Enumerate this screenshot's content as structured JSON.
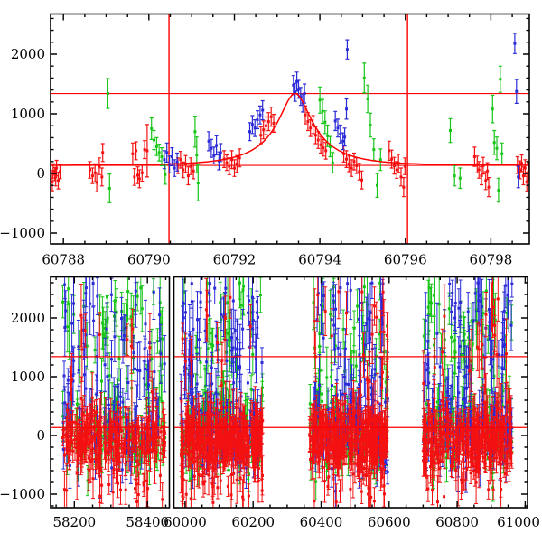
{
  "figure": {
    "background": "#ffffff",
    "axis_color": "#000000",
    "ref_line_color": "#ff0000",
    "model_color": "#ff0000",
    "series_colors": {
      "red": "#f41111",
      "green": "#17c517",
      "blue": "#2a2ad8"
    }
  },
  "chart_data": [
    {
      "id": "zoomed-light-curve",
      "type": "scatter",
      "x_range": [
        60787.7,
        60798.9
      ],
      "y_range": [
        -1182,
        2674
      ],
      "x_major_ticks": [
        60788,
        60790,
        60792,
        60794,
        60796,
        60798
      ],
      "x_tick_labels": [
        "60788",
        "60790",
        "60792",
        "60794",
        "60796",
        "60798"
      ],
      "x_minor_step": 0.5,
      "y_major_ticks": [
        -1000,
        0,
        1000,
        2000
      ],
      "y_tick_labels": [
        "−1000",
        "0",
        "1000",
        "2000"
      ],
      "y_minor_step": 200,
      "grid": false,
      "baseline_flux": 135,
      "peak_flux": 1340,
      "hlines": [
        135,
        1340
      ],
      "vlines": [
        60790.47,
        60796.05
      ],
      "model": {
        "shape": "paczynski",
        "t0": 60793.42,
        "tE": 1.4,
        "u0": 0.28,
        "baseline": 135,
        "peak": 1340
      },
      "series": [
        {
          "name": "red",
          "points": [
            [
              60787.74,
              -140,
              150
            ],
            [
              60787.76,
              40,
              120
            ],
            [
              60787.8,
              -10,
              110
            ],
            [
              60787.82,
              -60,
              150
            ],
            [
              60787.84,
              90,
              130
            ],
            [
              60787.88,
              -120,
              140
            ],
            [
              60787.92,
              30,
              120
            ],
            [
              60788.62,
              60,
              140
            ],
            [
              60788.68,
              -40,
              130
            ],
            [
              60788.74,
              10,
              150
            ],
            [
              60788.78,
              -150,
              160
            ],
            [
              60788.84,
              120,
              140
            ],
            [
              60788.9,
              -60,
              150
            ],
            [
              60788.92,
              350,
              150
            ],
            [
              60789.62,
              330,
              180
            ],
            [
              60789.66,
              -60,
              140
            ],
            [
              60789.7,
              380,
              150
            ],
            [
              60789.74,
              -30,
              140
            ],
            [
              60789.78,
              -90,
              150
            ],
            [
              60789.84,
              10,
              140
            ],
            [
              60789.9,
              400,
              150
            ],
            [
              60789.96,
              380,
              440
            ],
            [
              60790.68,
              130,
              130
            ],
            [
              60790.74,
              230,
              140
            ],
            [
              60790.8,
              60,
              130
            ],
            [
              60790.86,
              160,
              140
            ],
            [
              60790.92,
              -40,
              150
            ],
            [
              60790.98,
              120,
              140
            ],
            [
              60791.04,
              40,
              130
            ],
            [
              60791.76,
              240,
              140
            ],
            [
              60791.82,
              180,
              130
            ],
            [
              60791.88,
              120,
              140
            ],
            [
              60791.94,
              230,
              150
            ],
            [
              60792.0,
              90,
              140
            ],
            [
              60792.06,
              160,
              140
            ],
            [
              60792.12,
              260,
              150
            ],
            [
              60792.62,
              640,
              140
            ],
            [
              60792.68,
              730,
              150
            ],
            [
              60792.74,
              800,
              150
            ],
            [
              60792.8,
              870,
              150
            ],
            [
              60792.86,
              950,
              160
            ],
            [
              60792.92,
              840,
              150
            ],
            [
              60793.66,
              980,
              150
            ],
            [
              60793.72,
              870,
              150
            ],
            [
              60793.78,
              760,
              140
            ],
            [
              60793.84,
              820,
              150
            ],
            [
              60793.9,
              640,
              140
            ],
            [
              60793.96,
              560,
              140
            ],
            [
              60794.02,
              480,
              140
            ],
            [
              60794.08,
              430,
              140
            ],
            [
              60794.14,
              380,
              140
            ],
            [
              60794.56,
              330,
              140
            ],
            [
              60794.62,
              240,
              140
            ],
            [
              60794.68,
              160,
              130
            ],
            [
              60794.74,
              90,
              140
            ],
            [
              60794.8,
              200,
              140
            ],
            [
              60794.86,
              130,
              130
            ],
            [
              60794.92,
              30,
              140
            ],
            [
              60794.98,
              -110,
              150
            ],
            [
              60795.62,
              380,
              160
            ],
            [
              60795.68,
              240,
              150
            ],
            [
              60795.74,
              130,
              140
            ],
            [
              60795.8,
              60,
              140
            ],
            [
              60795.84,
              170,
              150
            ],
            [
              60795.9,
              -60,
              150
            ],
            [
              60795.96,
              -230,
              160
            ],
            [
              60795.99,
              120,
              140
            ],
            [
              60797.62,
              280,
              160
            ],
            [
              60797.68,
              150,
              140
            ],
            [
              60797.72,
              60,
              140
            ],
            [
              60797.78,
              -40,
              150
            ],
            [
              60797.82,
              130,
              140
            ],
            [
              60797.88,
              -120,
              150
            ],
            [
              60797.92,
              40,
              140
            ],
            [
              60797.95,
              -230,
              160
            ],
            [
              60798.62,
              140,
              140
            ],
            [
              60798.68,
              60,
              150
            ],
            [
              60798.72,
              170,
              140
            ],
            [
              60798.76,
              -40,
              150
            ],
            [
              60798.8,
              90,
              140
            ],
            [
              60798.84,
              -140,
              160
            ],
            [
              60798.88,
              30,
              150
            ]
          ]
        },
        {
          "name": "green",
          "points": [
            [
              60789.04,
              1340,
              250
            ],
            [
              60789.08,
              -250,
              240
            ],
            [
              60790.06,
              750,
              180
            ],
            [
              60790.12,
              560,
              160
            ],
            [
              60790.18,
              450,
              150
            ],
            [
              60790.24,
              350,
              140
            ],
            [
              60790.3,
              280,
              150
            ],
            [
              60790.38,
              -20,
              160
            ],
            [
              60791.08,
              700,
              260
            ],
            [
              60791.12,
              310,
              300
            ],
            [
              60791.15,
              -160,
              300
            ],
            [
              60794.0,
              1230,
              220
            ],
            [
              60794.06,
              1040,
              200
            ],
            [
              60794.12,
              860,
              190
            ],
            [
              60794.18,
              630,
              180
            ],
            [
              60794.24,
              450,
              170
            ],
            [
              60794.3,
              180,
              170
            ],
            [
              60795.04,
              1600,
              250
            ],
            [
              60795.12,
              1250,
              230
            ],
            [
              60795.18,
              810,
              200
            ],
            [
              60795.26,
              400,
              180
            ],
            [
              60795.34,
              -200,
              200
            ],
            [
              60795.42,
              230,
              180
            ],
            [
              60797.05,
              720,
              200
            ],
            [
              60797.15,
              -40,
              170
            ],
            [
              60797.28,
              -80,
              170
            ],
            [
              60798.04,
              1080,
              230
            ],
            [
              60798.08,
              520,
              200
            ],
            [
              60798.14,
              420,
              190
            ],
            [
              60798.18,
              -280,
              200
            ],
            [
              60798.22,
              1580,
              220
            ],
            [
              60798.26,
              330,
              180
            ]
          ]
        },
        {
          "name": "blue",
          "points": [
            [
              60790.36,
              230,
              150
            ],
            [
              60790.42,
              350,
              160
            ],
            [
              60790.48,
              150,
              140
            ],
            [
              60790.54,
              280,
              150
            ],
            [
              60790.6,
              90,
              140
            ],
            [
              60790.66,
              190,
              150
            ],
            [
              60791.4,
              540,
              160
            ],
            [
              60791.46,
              420,
              150
            ],
            [
              60791.52,
              300,
              140
            ],
            [
              60791.58,
              470,
              160
            ],
            [
              60791.64,
              210,
              150
            ],
            [
              60791.68,
              350,
              150
            ],
            [
              60792.36,
              700,
              150
            ],
            [
              60792.42,
              820,
              150
            ],
            [
              60792.48,
              760,
              140
            ],
            [
              60792.54,
              900,
              150
            ],
            [
              60792.6,
              980,
              150
            ],
            [
              60792.66,
              1060,
              160
            ],
            [
              60793.38,
              1480,
              160
            ],
            [
              60793.42,
              1360,
              150
            ],
            [
              60793.46,
              1540,
              160
            ],
            [
              60793.5,
              1410,
              150
            ],
            [
              60793.55,
              1290,
              150
            ],
            [
              60793.6,
              1180,
              150
            ],
            [
              60793.64,
              1340,
              160
            ],
            [
              60794.36,
              880,
              160
            ],
            [
              60794.42,
              760,
              150
            ],
            [
              60794.48,
              660,
              150
            ],
            [
              60794.54,
              540,
              140
            ],
            [
              60794.58,
              610,
              150
            ],
            [
              60794.62,
              1080,
              170
            ],
            [
              60794.64,
              2080,
              160
            ],
            [
              60798.56,
              2180,
              170
            ],
            [
              60798.6,
              1375,
              200
            ],
            [
              60798.64,
              -60,
              180
            ]
          ]
        }
      ]
    },
    {
      "id": "full-light-curve",
      "type": "scatter",
      "broken_x_axis": true,
      "boxes": [
        {
          "x_range": [
            58135,
            58460
          ],
          "x_major_ticks": [
            58200,
            58400
          ],
          "x_tick_labels": [
            "58200",
            "58400"
          ]
        },
        {
          "x_range": [
            59967,
            61007
          ],
          "x_major_ticks": [
            60000,
            60200,
            60400,
            60600,
            60800,
            61000
          ],
          "x_tick_labels": [
            "60000",
            "60200",
            "60400",
            "60600",
            "60800",
            "61000"
          ]
        }
      ],
      "x_minor_step": 50,
      "y_range": [
        -1231,
        2700
      ],
      "y_major_ticks": [
        -1000,
        0,
        1000,
        2000
      ],
      "y_tick_labels": [
        "−1000",
        "0",
        "1000",
        "2000"
      ],
      "y_minor_step": 200,
      "grid": false,
      "hlines": [
        135,
        1340
      ],
      "seasons": [
        {
          "box": 0,
          "t_start": 58168,
          "t_end": 58448,
          "n_points": 540
        },
        {
          "box": 1,
          "t_start": 59987,
          "t_end": 60228,
          "n_points": 640
        },
        {
          "box": 1,
          "t_start": 60366,
          "t_end": 60596,
          "n_points": 610
        },
        {
          "box": 1,
          "t_start": 60700,
          "t_end": 60962,
          "n_points": 640
        }
      ],
      "noise_model": {
        "seed": 1234,
        "color_fractions": {
          "red": 0.55,
          "green": 0.21,
          "blue": 0.24
        },
        "red_baseline_mean": -70,
        "red_baseline_sigma": 240,
        "red_high_outlier_fraction": 0.06,
        "red_high_outlier_range": [
          250,
          2450
        ],
        "red_low_outlier_fraction": 0.05,
        "red_low_outlier_range": [
          -1150,
          -650
        ],
        "gb_high_fraction": 0.45,
        "gb_high_range": [
          150,
          2600
        ],
        "gb_baseline_mean": 20,
        "gb_baseline_sigma": 330
      }
    }
  ]
}
